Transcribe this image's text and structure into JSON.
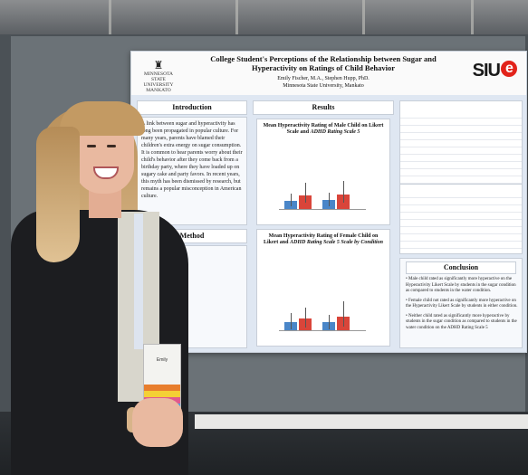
{
  "poster": {
    "logo_left": "MINNESOTA STATE UNIVERSITY MANKATO",
    "title": "College Student's Perceptions of the Relationship between Sugar and Hyperactivity on Ratings of Child Behavior",
    "authors": "Emily Fischer, M.A., Stephen Hupp, PhD.",
    "affiliation": "Minnesota State University, Mankato",
    "logo_right": "SIU",
    "logo_right_e": "e",
    "sections": {
      "introduction": "Introduction",
      "results": "Results",
      "method": "Method",
      "conclusion": "Conclusion"
    },
    "introduction_text": "A link between sugar and hyperactivity has long been propagated in popular culture. For many years, parents have blamed their children's extra energy on sugar consumption. It is common to hear parents worry about their child's behavior after they come back from a birthday party, where they have loaded up on sugary cake and party favors. In recent years, this myth has been dismissed by research, but remains a popular misconception in American culture.",
    "chart1_title_a": "Mean Hyperactivity Rating of Male Child on Likert Scale and ",
    "chart1_title_b": "ADHD",
    "chart1_title_c": " Rating Scale 5",
    "chart2_title_a": "Mean Hyperactivity Rating of Female Child on Likert and ",
    "chart2_title_b": "ADHD",
    "chart2_title_c": " Rating Scale 5 Scale by Condition",
    "conclusion_bullets": [
      "Male child rated as significantly more hyperactive on the Hyperactivity Likert Scale by students in the sugar condition as compared to students in the water condition.",
      "Female child not rated as significantly more hyperactive on the Hyperactivity Likert Scale by students in either condition.",
      "Neither child rated as significantly more hyperactive by students in the sugar condition as compared to students in the water condition on the ADHD Rating Scale 5"
    ],
    "badge": "Emily"
  },
  "colors": {
    "sugar_bar": "#d9453a",
    "water_bar": "#4a86c8",
    "siue_red": "#e2231a",
    "poster_bg": "#dfe7f2"
  }
}
